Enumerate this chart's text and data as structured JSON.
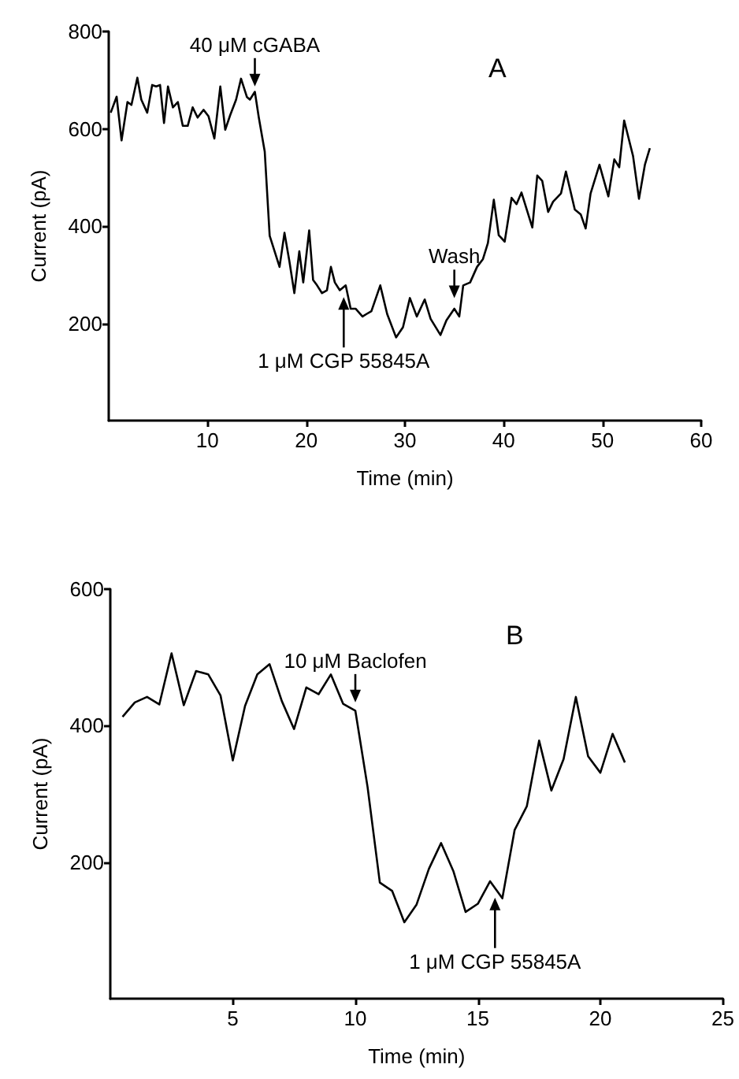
{
  "chart_data": [
    {
      "type": "line",
      "title": "A",
      "xlabel": "Time (min)",
      "ylabel": "Current (pA)",
      "xlim": [
        0,
        60
      ],
      "xticks": [
        10,
        20,
        30,
        40,
        50,
        60
      ],
      "ylim": [
        0,
        800
      ],
      "yticks": [
        200,
        400,
        600,
        800
      ],
      "grid": false,
      "marker": "none",
      "line_style": "solid",
      "annotations": [
        {
          "text": "40 μM cGABA",
          "x": 14.8,
          "y": 687
        },
        {
          "text": "1 μM CGP 55845A",
          "x": 23.8,
          "y": 254
        },
        {
          "text": "Wash",
          "x": 35,
          "y": 252
        }
      ],
      "series": [
        {
          "color": "#000000",
          "x": [
            0.2,
            0.8,
            1.3,
            1.9,
            2.3,
            2.9,
            3.3,
            3.9,
            4.4,
            4.8,
            5.2,
            5.6,
            6,
            6.5,
            7,
            7.5,
            8,
            8.5,
            9,
            9.6,
            10.1,
            10.7,
            11.3,
            11.8,
            12.3,
            12.9,
            13.4,
            14,
            14.3,
            14.8,
            15.2,
            15.8,
            16.3,
            16.8,
            17.3,
            17.8,
            18.3,
            18.8,
            19.3,
            19.7,
            20.3,
            20.7,
            21.1,
            21.6,
            22.1,
            22.5,
            22.9,
            23.4,
            24,
            24.5,
            25,
            25.7,
            26.1,
            26.6,
            27.5,
            28.2,
            29.1,
            29.8,
            30.5,
            31.2,
            32,
            32.6,
            33.6,
            34.2,
            35,
            35.5,
            35.9,
            36.6,
            37.3,
            37.9,
            38.4,
            39,
            39.5,
            40.1,
            40.8,
            41.3,
            41.8,
            42.9,
            43.4,
            43.9,
            44.5,
            45,
            45.8,
            46.3,
            47.2,
            47.8,
            48.3,
            48.8,
            49.7,
            50.6,
            51.2,
            51.7,
            52.2,
            53.1,
            53.7,
            54.3,
            54.8
          ],
          "values": [
            633,
            666,
            576,
            655,
            649,
            705,
            660,
            633,
            690,
            687,
            690,
            612,
            687,
            644,
            655,
            606,
            606,
            644,
            623,
            639,
            626,
            580,
            687,
            598,
            628,
            660,
            703,
            665,
            660,
            676,
            623,
            553,
            380,
            348,
            316,
            386,
            327,
            262,
            348,
            284,
            391,
            289,
            278,
            262,
            268,
            316,
            284,
            268,
            278,
            230,
            230,
            214,
            219,
            225,
            278,
            219,
            171,
            192,
            252,
            214,
            249,
            209,
            176,
            206,
            230,
            214,
            278,
            284,
            316,
            332,
            365,
            454,
            381,
            368,
            458,
            445,
            469,
            397,
            504,
            493,
            429,
            450,
            467,
            512,
            434,
            424,
            395,
            467,
            526,
            461,
            537,
            521,
            617,
            544,
            456,
            526,
            560
          ]
        }
      ]
    },
    {
      "type": "line",
      "title": "B",
      "xlabel": "Time (min)",
      "ylabel": "Current (pA)",
      "xlim": [
        0,
        25
      ],
      "xticks": [
        5,
        10,
        15,
        20,
        25
      ],
      "ylim": [
        0,
        600
      ],
      "yticks": [
        200,
        400,
        600
      ],
      "grid": false,
      "marker": "none",
      "line_style": "solid",
      "annotations": [
        {
          "text": "10 μM Baclofen",
          "x": 10,
          "y": 434
        },
        {
          "text": "1 μM CGP 55845A",
          "x": 15.7,
          "y": 148
        }
      ],
      "series": [
        {
          "color": "#000000",
          "x": [
            0.5,
            1,
            1.5,
            2,
            2.5,
            3,
            3.5,
            4,
            4.5,
            5,
            5.5,
            6,
            6.5,
            7,
            7.5,
            8,
            8.5,
            9,
            9.5,
            10,
            10.5,
            11,
            11.5,
            12,
            12.5,
            13,
            13.5,
            14,
            14.5,
            15,
            15.5,
            16,
            16.5,
            17,
            17.5,
            18,
            18.5,
            19,
            19.5,
            20,
            20.5,
            21
          ],
          "values": [
            413,
            434,
            442,
            431,
            506,
            430,
            480,
            475,
            444,
            349,
            429,
            475,
            490,
            436,
            395,
            456,
            446,
            475,
            432,
            422,
            310,
            170,
            158,
            112,
            138,
            190,
            228,
            187,
            127,
            139,
            172,
            147,
            247,
            282,
            378,
            305,
            351,
            442,
            355,
            331,
            388,
            346
          ]
        }
      ]
    }
  ]
}
